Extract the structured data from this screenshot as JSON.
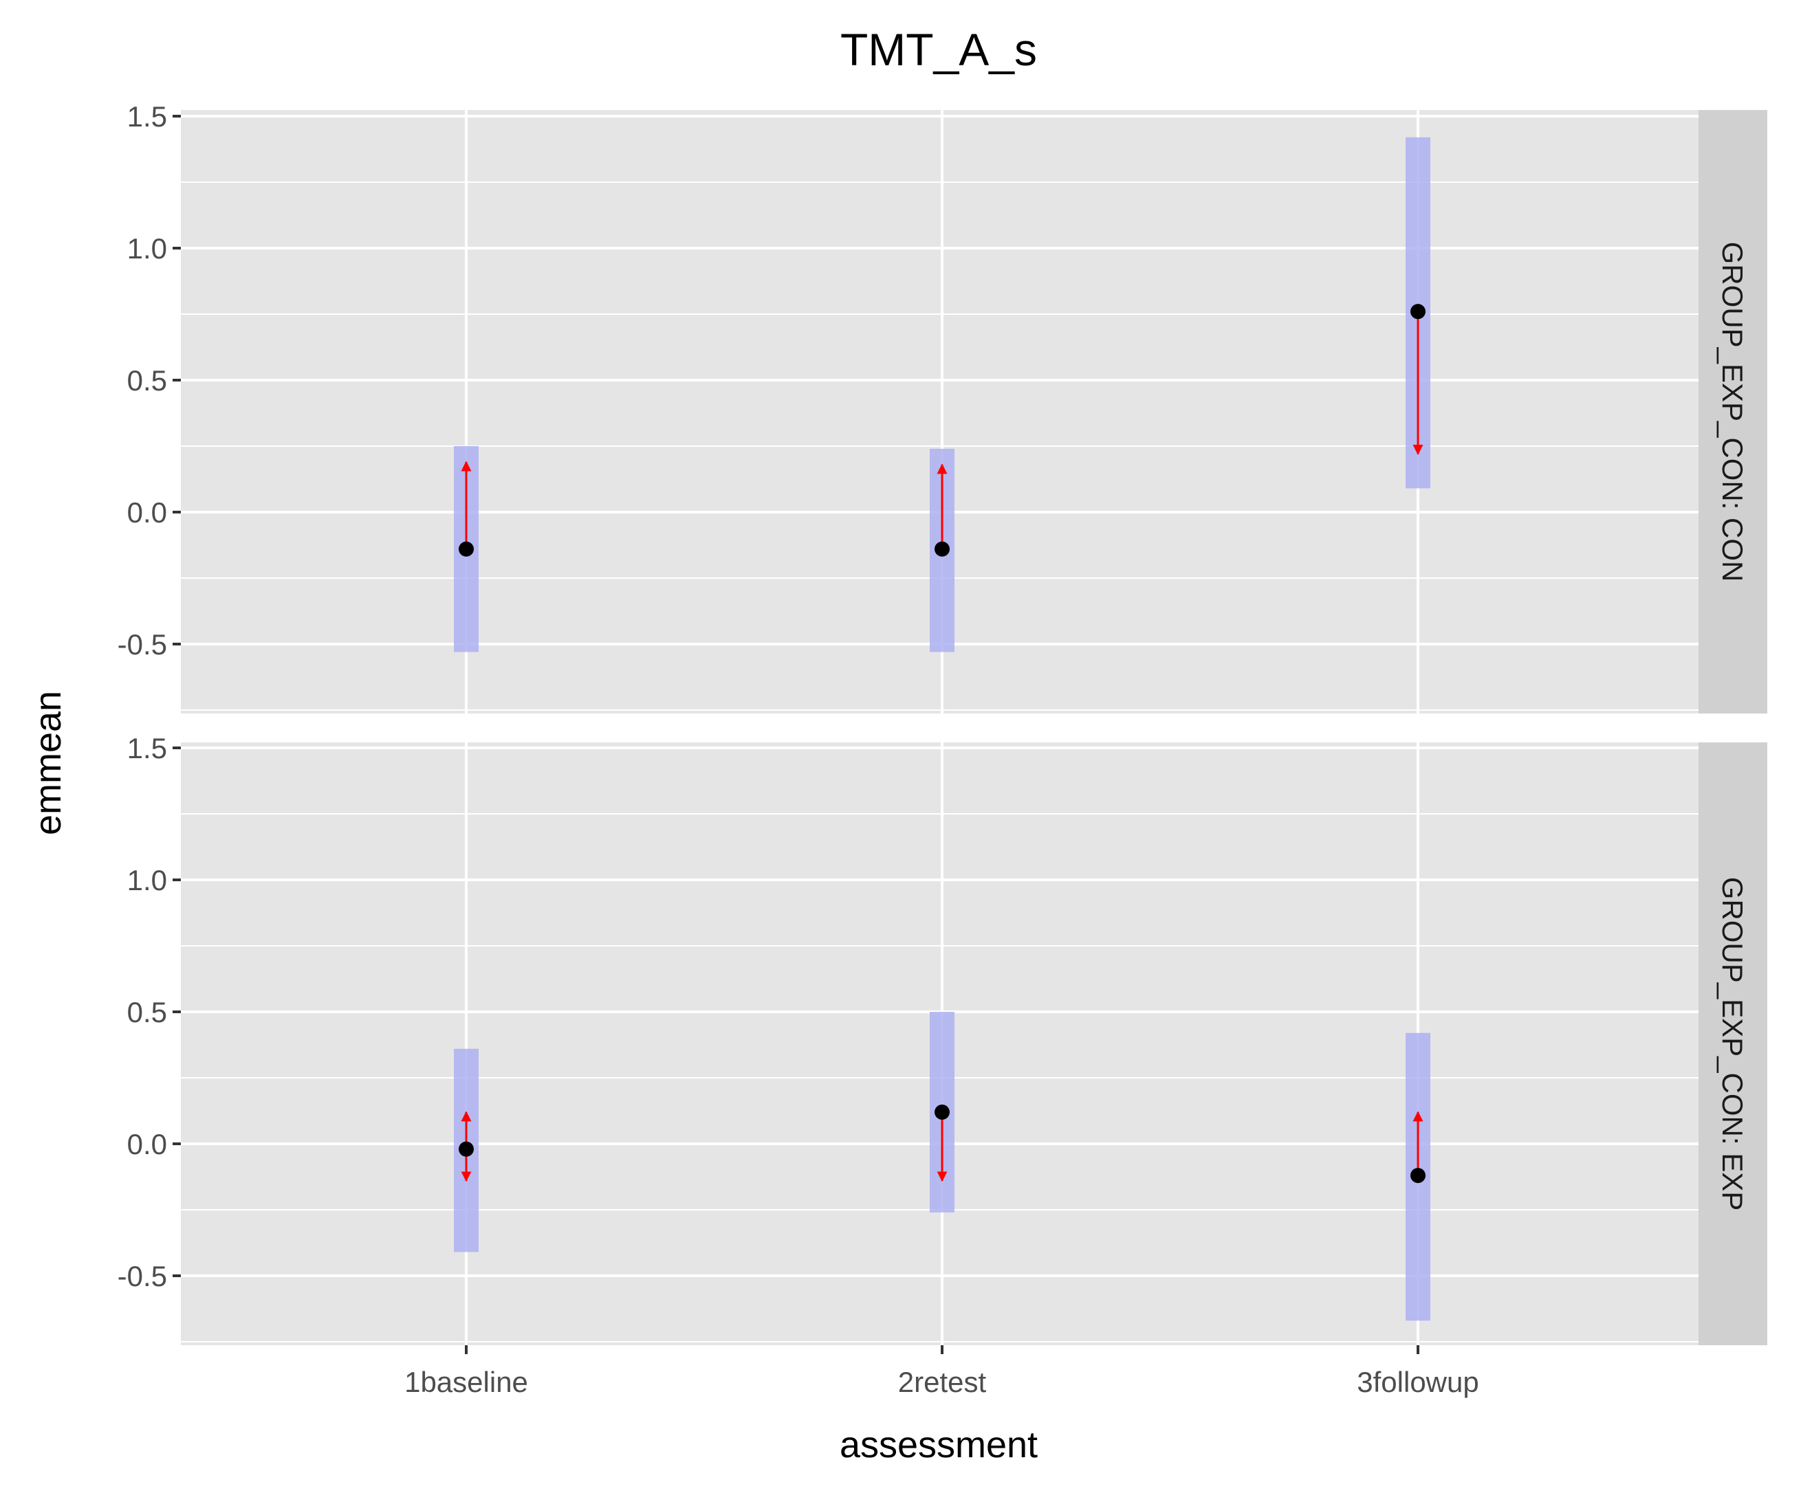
{
  "chart_data": {
    "type": "scatter",
    "title": "TMT_A_s",
    "xlabel": "assessment",
    "ylabel": "emmean",
    "categories": [
      "1baseline",
      "2retest",
      "3followup"
    ],
    "ylim": [
      -0.75,
      1.5
    ],
    "yticks": [
      -0.5,
      0.0,
      0.5,
      1.0,
      1.5
    ],
    "ytick_labels": [
      "-0.5",
      "0.0",
      "0.5",
      "1.0",
      "1.5"
    ],
    "grid": true,
    "colors": {
      "panel_bg": "#e5e5e5",
      "strip_bg": "#d0d0d0",
      "ci_band": "#aeb0f2",
      "arrow": "#ff0000",
      "point": "#000000"
    },
    "panels": [
      {
        "strip_label": "GROUP_EXP_CON: CON",
        "points": [
          {
            "category": "1baseline",
            "emmean": -0.14,
            "lower": -0.53,
            "upper": 0.25,
            "arrow_from": -0.12,
            "arrow_to": 0.19
          },
          {
            "category": "2retest",
            "emmean": -0.14,
            "lower": -0.53,
            "upper": 0.24,
            "arrow_from": -0.12,
            "arrow_to": 0.18
          },
          {
            "category": "3followup",
            "emmean": 0.76,
            "lower": 0.09,
            "upper": 1.42,
            "arrow_from": 0.76,
            "arrow_to": 0.22
          }
        ]
      },
      {
        "strip_label": "GROUP_EXP_CON: EXP",
        "points": [
          {
            "category": "1baseline",
            "emmean": -0.02,
            "lower": -0.41,
            "upper": 0.36,
            "arrow_from": 0.12,
            "arrow_to": -0.14,
            "double_headed": true
          },
          {
            "category": "2retest",
            "emmean": 0.12,
            "lower": -0.26,
            "upper": 0.5,
            "arrow_from": 0.12,
            "arrow_to": -0.14
          },
          {
            "category": "3followup",
            "emmean": -0.12,
            "lower": -0.67,
            "upper": 0.42,
            "arrow_from": -0.12,
            "arrow_to": 0.12
          }
        ]
      }
    ]
  }
}
